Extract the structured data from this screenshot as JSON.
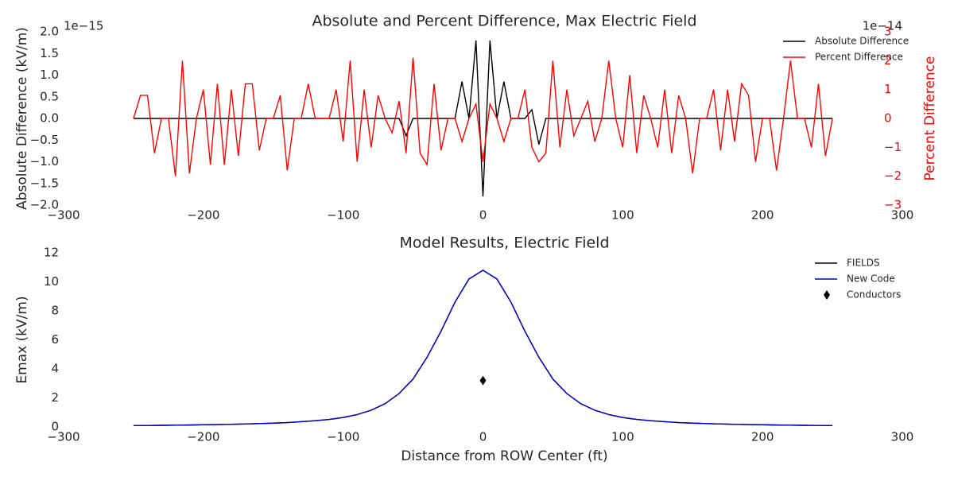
{
  "chart_data": [
    {
      "type": "line",
      "title": "Absolute and Percent Difference, Max Electric Field",
      "ylabel": "Absolute Difference (kV/m)",
      "y2label": "Percent Difference",
      "y_offset_label": "1e−15",
      "y2_offset_label": "1e−14",
      "x": [
        -250,
        -245,
        -240,
        -235,
        -230,
        -225,
        -220,
        -215,
        -210,
        -205,
        -200,
        -195,
        -190,
        -185,
        -180,
        -175,
        -170,
        -165,
        -160,
        -155,
        -150,
        -145,
        -140,
        -135,
        -130,
        -125,
        -120,
        -115,
        -110,
        -105,
        -100,
        -95,
        -90,
        -85,
        -80,
        -75,
        -70,
        -65,
        -60,
        -55,
        -50,
        -45,
        -40,
        -35,
        -30,
        -25,
        -20,
        -15,
        -10,
        -5,
        0,
        5,
        10,
        15,
        20,
        25,
        30,
        35,
        40,
        45,
        50,
        55,
        60,
        65,
        70,
        75,
        80,
        85,
        90,
        95,
        100,
        105,
        110,
        115,
        120,
        125,
        130,
        135,
        140,
        145,
        150,
        155,
        160,
        165,
        170,
        175,
        180,
        185,
        190,
        195,
        200,
        205,
        210,
        215,
        220,
        225,
        230,
        235,
        240,
        245,
        250
      ],
      "series": [
        {
          "name": "Absolute Difference",
          "color": "#000000",
          "values": [
            0,
            0,
            0,
            0,
            0,
            0,
            0,
            0,
            0,
            0,
            0,
            0,
            0,
            0,
            0,
            0,
            0,
            0,
            0,
            0,
            0,
            0,
            0,
            0,
            0,
            0,
            0,
            0,
            0,
            0,
            0,
            0,
            0,
            0,
            0,
            0,
            0,
            0,
            0,
            -4e-16,
            0,
            0,
            0,
            0,
            0,
            0,
            0,
            8.5e-16,
            0,
            1.8e-15,
            -1.8e-15,
            1.8e-15,
            0,
            8.5e-16,
            0,
            0,
            0,
            2e-16,
            -6e-16,
            0,
            0,
            0,
            0,
            0,
            0,
            0,
            0,
            0,
            0,
            0,
            0,
            0,
            0,
            0,
            0,
            0,
            0,
            0,
            0,
            0,
            0,
            0,
            0,
            0,
            0,
            0,
            0,
            0,
            0,
            0,
            0,
            0,
            0,
            0,
            0,
            0,
            0,
            0,
            0,
            0,
            0
          ]
        },
        {
          "name": "Percent Difference",
          "color": "#ff0000",
          "axis": "y2",
          "values": [
            0,
            8e-15,
            8e-15,
            -1.2e-14,
            0,
            0,
            -2e-14,
            2e-14,
            -1.9e-14,
            0,
            1e-14,
            -1.6e-14,
            1.2e-14,
            -1.6e-14,
            1e-14,
            -1.3e-14,
            1.2e-14,
            1.2e-14,
            -1.1e-14,
            0,
            0,
            8e-15,
            -1.8e-14,
            0,
            0,
            1.2e-14,
            0,
            0,
            0,
            1e-14,
            -8e-15,
            2e-14,
            -1.5e-14,
            1e-14,
            -1e-14,
            8e-15,
            0,
            -5e-15,
            6e-15,
            -1.2e-14,
            2.1e-14,
            -1.2e-14,
            -1.6e-14,
            1.2e-14,
            -1.1e-14,
            0,
            0,
            -8e-15,
            0,
            5e-15,
            -1.5e-14,
            5e-15,
            0,
            -8e-15,
            0,
            0,
            1e-14,
            -1e-14,
            -1.5e-14,
            -1.2e-14,
            2e-14,
            -1e-14,
            1e-14,
            -6e-15,
            0,
            6e-15,
            -8e-15,
            0,
            2e-14,
            0,
            -1e-14,
            1.5e-14,
            -1.2e-14,
            8e-15,
            0,
            -1e-14,
            1e-14,
            -1.2e-14,
            8e-15,
            0,
            -1.9e-14,
            0,
            0,
            1e-14,
            -1.1e-14,
            1e-14,
            -8e-15,
            1.2e-14,
            8e-15,
            -1.5e-14,
            0,
            0,
            -1.8e-14,
            0,
            2e-14,
            0,
            0,
            -1e-14,
            1.2e-14,
            -1.3e-14,
            0
          ]
        }
      ],
      "xlim": [
        -300,
        300
      ],
      "xticks": [
        {
          "value": -300,
          "label": "−300"
        },
        {
          "value": -200,
          "label": "−200"
        },
        {
          "value": -100,
          "label": "−100"
        },
        0,
        100,
        200,
        300
      ],
      "ylim": [
        -2e-15,
        2e-15
      ],
      "yticks": [
        {
          "value": -2e-15,
          "label": "−2.0"
        },
        {
          "value": -1.5e-15,
          "label": "−1.5"
        },
        {
          "value": -1e-15,
          "label": "−1.0"
        },
        {
          "value": -5e-16,
          "label": "−0.5"
        },
        {
          "value": 0,
          "label": "0.0"
        },
        {
          "value": 5e-16,
          "label": "0.5"
        },
        {
          "value": 1e-15,
          "label": "1.0"
        },
        {
          "value": 1.5e-15,
          "label": "1.5"
        },
        {
          "value": 2e-15,
          "label": "2.0"
        }
      ],
      "y2lim": [
        -3e-14,
        3e-14
      ],
      "y2ticks": [
        {
          "value": -3e-14,
          "label": "−3"
        },
        {
          "value": -2e-14,
          "label": "−2"
        },
        {
          "value": -1e-14,
          "label": "−1"
        },
        0,
        {
          "value": 1e-14,
          "label": "1"
        },
        {
          "value": 2e-14,
          "label": "2"
        },
        {
          "value": 3e-14,
          "label": "3"
        }
      ],
      "y2color": "#ff0000",
      "grid": false,
      "legend": "upper right"
    },
    {
      "type": "line",
      "title": "Model Results, Electric Field",
      "xlabel": "Distance from ROW Center (ft)",
      "ylabel": "Emax (kV/m)",
      "x": [
        -250,
        -240,
        -230,
        -220,
        -210,
        -200,
        -190,
        -180,
        -170,
        -160,
        -150,
        -140,
        -130,
        -120,
        -110,
        -100,
        -90,
        -80,
        -70,
        -60,
        -50,
        -40,
        -30,
        -20,
        -10,
        0,
        10,
        20,
        30,
        40,
        50,
        60,
        70,
        80,
        90,
        100,
        110,
        120,
        130,
        140,
        150,
        160,
        170,
        180,
        190,
        200,
        210,
        220,
        230,
        240,
        250
      ],
      "series": [
        {
          "name": "FIELDS",
          "color": "#000000",
          "values": [
            0.09,
            0.1,
            0.11,
            0.12,
            0.13,
            0.15,
            0.16,
            0.18,
            0.2,
            0.23,
            0.26,
            0.3,
            0.36,
            0.43,
            0.52,
            0.65,
            0.85,
            1.15,
            1.6,
            2.3,
            3.3,
            4.8,
            6.6,
            8.6,
            10.2,
            10.8,
            10.2,
            8.6,
            6.6,
            4.8,
            3.3,
            2.3,
            1.6,
            1.15,
            0.85,
            0.65,
            0.52,
            0.43,
            0.36,
            0.3,
            0.26,
            0.23,
            0.2,
            0.18,
            0.16,
            0.15,
            0.13,
            0.12,
            0.11,
            0.1,
            0.09
          ]
        },
        {
          "name": "New Code",
          "color": "#0000cc",
          "values": [
            0.09,
            0.1,
            0.11,
            0.12,
            0.13,
            0.15,
            0.16,
            0.18,
            0.2,
            0.23,
            0.26,
            0.3,
            0.36,
            0.43,
            0.52,
            0.65,
            0.85,
            1.15,
            1.6,
            2.3,
            3.3,
            4.8,
            6.6,
            8.6,
            10.2,
            10.8,
            10.2,
            8.6,
            6.6,
            4.8,
            3.3,
            2.3,
            1.6,
            1.15,
            0.85,
            0.65,
            0.52,
            0.43,
            0.36,
            0.3,
            0.26,
            0.23,
            0.2,
            0.18,
            0.16,
            0.15,
            0.13,
            0.12,
            0.11,
            0.1,
            0.09
          ]
        },
        {
          "name": "Conductors",
          "type": "scatter",
          "marker": "diamond",
          "color": "#000000",
          "x": [
            0
          ],
          "values": [
            3.2
          ]
        }
      ],
      "xlim": [
        -300,
        300
      ],
      "xticks": [
        {
          "value": -300,
          "label": "−300"
        },
        {
          "value": -200,
          "label": "−200"
        },
        {
          "value": -100,
          "label": "−100"
        },
        0,
        100,
        200,
        300
      ],
      "ylim": [
        0,
        12
      ],
      "yticks": [
        0,
        2,
        4,
        6,
        8,
        10,
        12
      ],
      "grid": false,
      "legend": "upper right"
    }
  ]
}
